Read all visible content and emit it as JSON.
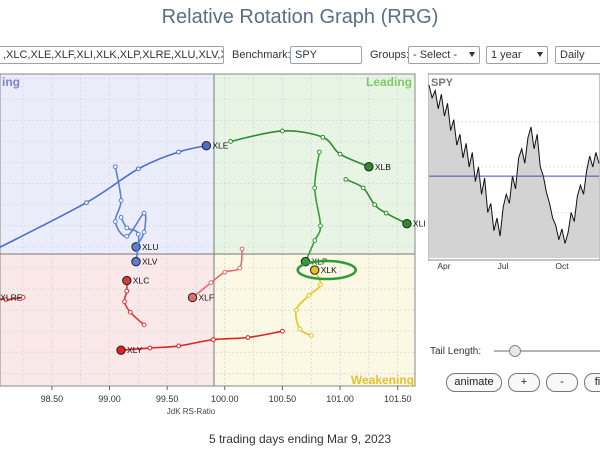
{
  "page": {
    "title": "Relative Rotation Graph (RRG)"
  },
  "controls": {
    "symbols_value": ",XLC,XLE,XLF,XLI,XLK,XLP,XLRE,XLU,XLV,XL",
    "benchmark_label": "Benchmark:",
    "benchmark_value": "SPY",
    "groups_label": "Groups:",
    "groups_value": "- Select -",
    "period_value": "1 year",
    "frequency_value": "Daily"
  },
  "chart_data": [
    {
      "type": "scatter",
      "title": "",
      "xlabel": "JdK RS-Ratio",
      "ylabel": "",
      "xlim": [
        98.05,
        101.65
      ],
      "ylim": [
        95.2,
        102.6
      ],
      "x_ticks": [
        "98.50",
        "99.00",
        "99.50",
        "100.00",
        "100.50",
        "101.00",
        "101.50"
      ],
      "quadrants": {
        "leading": "Leading",
        "weakening": "Weakening",
        "lagging": "",
        "improving": "ing"
      },
      "colors": {
        "leading_bg": "#e9f5e4",
        "weakening_bg": "#fbf8e3",
        "lagging_bg": "#fbe9ea",
        "improving_bg": "#ecedfa",
        "leading_text": "#7cc96a",
        "weakening_text": "#e0c230",
        "improving_text": "#7b82d6"
      },
      "highlight": "XLK",
      "series": [
        {
          "name": "XLE",
          "color": "#4a6fd0",
          "points": [
            [
              98.02,
              98.45
            ],
            [
              98.8,
              99.55
            ],
            [
              99.25,
              100.35
            ],
            [
              99.6,
              100.75
            ],
            [
              99.84,
              100.9
            ]
          ]
        },
        {
          "name": "XLU",
          "color": "#5b7ed8",
          "points": [
            [
              99.05,
              100.4
            ],
            [
              99.1,
              99.6
            ],
            [
              99.05,
              99.1
            ],
            [
              99.15,
              98.75
            ],
            [
              99.3,
              99.3
            ],
            [
              99.3,
              98.85
            ],
            [
              99.23,
              98.5
            ]
          ]
        },
        {
          "name": "XLV",
          "color": "#5b7ed8",
          "points": [
            [
              99.1,
              99.2
            ],
            [
              99.15,
              98.95
            ],
            [
              99.25,
              98.8
            ],
            [
              99.23,
              98.15
            ]
          ]
        },
        {
          "name": "XLB",
          "color": "#2e8b2e",
          "points": [
            [
              100.05,
              101.0
            ],
            [
              100.5,
              101.25
            ],
            [
              100.85,
              101.1
            ],
            [
              101.0,
              100.7
            ],
            [
              101.25,
              100.4
            ]
          ]
        },
        {
          "name": "XLI",
          "color": "#2e8b2e",
          "points": [
            [
              101.05,
              100.1
            ],
            [
              101.2,
              99.9
            ],
            [
              101.3,
              99.5
            ],
            [
              101.4,
              99.3
            ],
            [
              101.58,
              99.05
            ]
          ]
        },
        {
          "name": "XLP",
          "color": "#3a9c3a",
          "points": [
            [
              100.82,
              100.75
            ],
            [
              100.78,
              99.9
            ],
            [
              100.83,
              99.0
            ],
            [
              100.78,
              98.65
            ],
            [
              100.7,
              98.15
            ]
          ]
        },
        {
          "name": "XLK",
          "color": "#e8c322",
          "points": [
            [
              100.75,
              96.4
            ],
            [
              100.65,
              96.55
            ],
            [
              100.62,
              97.0
            ],
            [
              100.73,
              97.35
            ],
            [
              100.83,
              97.6
            ],
            [
              100.78,
              97.95
            ]
          ]
        },
        {
          "name": "XLF",
          "color": "#e06c6c",
          "points": [
            [
              100.15,
              98.45
            ],
            [
              100.13,
              98.0
            ],
            [
              100.0,
              97.9
            ],
            [
              99.88,
              97.65
            ],
            [
              99.72,
              97.3
            ]
          ]
        },
        {
          "name": "XLC",
          "color": "#d63a3a",
          "points": [
            [
              99.3,
              96.65
            ],
            [
              99.18,
              96.95
            ],
            [
              99.13,
              97.2
            ],
            [
              99.15,
              97.45
            ],
            [
              99.15,
              97.7
            ]
          ]
        },
        {
          "name": "XLY",
          "color": "#dd2222",
          "points": [
            [
              100.5,
              96.5
            ],
            [
              100.2,
              96.35
            ],
            [
              99.9,
              96.3
            ],
            [
              99.6,
              96.15
            ],
            [
              99.35,
              96.1
            ],
            [
              99.1,
              96.05
            ]
          ]
        },
        {
          "name": "XLRE",
          "color": "#d63a3a",
          "points": [
            [
              98.25,
              97.3
            ],
            [
              98.1,
              97.25
            ],
            [
              98.0,
              97.3
            ]
          ]
        }
      ]
    },
    {
      "type": "line",
      "title": "SPY",
      "x_ticks": [
        "Apr",
        "Jul",
        "Oct"
      ],
      "ylim": [
        0,
        1
      ],
      "baseline": 0.45,
      "colors": {
        "line": "#111111",
        "fill": "#d3d3d3",
        "baseline": "#3a4fc0"
      },
      "values": [
        0.95,
        0.88,
        0.92,
        0.82,
        0.9,
        0.78,
        0.85,
        0.7,
        0.76,
        0.62,
        0.68,
        0.55,
        0.63,
        0.5,
        0.58,
        0.42,
        0.5,
        0.35,
        0.44,
        0.25,
        0.3,
        0.15,
        0.22,
        0.12,
        0.28,
        0.35,
        0.3,
        0.45,
        0.38,
        0.55,
        0.6,
        0.52,
        0.66,
        0.72,
        0.6,
        0.68,
        0.5,
        0.45,
        0.36,
        0.3,
        0.22,
        0.18,
        0.1,
        0.16,
        0.08,
        0.14,
        0.25,
        0.2,
        0.34,
        0.4,
        0.35,
        0.48,
        0.56,
        0.5,
        0.58,
        0.52
      ]
    }
  ],
  "tail": {
    "label": "Tail Length:"
  },
  "buttons": {
    "animate": "animate",
    "plus": "+",
    "minus": "-",
    "fit": "fit"
  },
  "footer": "5 trading days ending Mar 9, 2023"
}
